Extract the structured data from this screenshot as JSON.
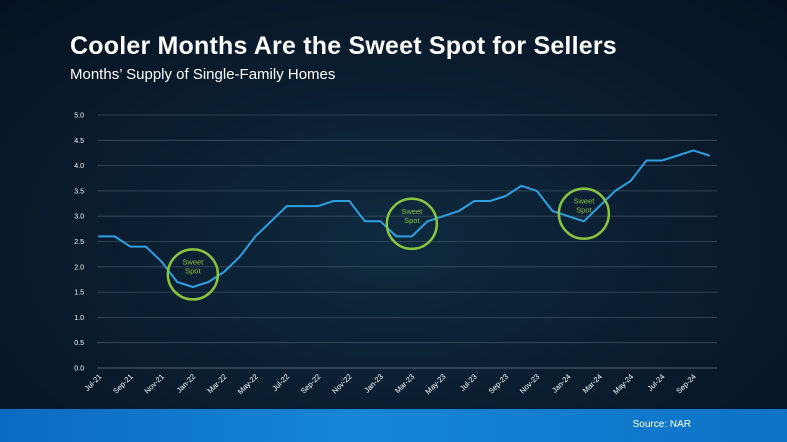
{
  "title": "Cooler Months Are the Sweet Spot for Sellers",
  "subtitle": "Months’ Supply of Single-Family Homes",
  "source": "Source: NAR",
  "colors": {
    "line": "#2e9fe0",
    "callout": "#8bc53f",
    "grid": "#3a4f60",
    "axis_text": "#ffffff"
  },
  "chart_data": {
    "type": "line",
    "title": "Cooler Months Are the Sweet Spot for Sellers",
    "subtitle": "Months’ Supply of Single-Family Homes",
    "xlabel": "",
    "ylabel": "",
    "ylim": [
      0,
      5
    ],
    "yticks": [
      "0.0",
      "0.5",
      "1.0",
      "1.5",
      "2.0",
      "2.5",
      "3.0",
      "3.5",
      "4.0",
      "4.5",
      "5.0"
    ],
    "grid": true,
    "x": [
      "Jul-21",
      "Aug-21",
      "Sep-21",
      "Oct-21",
      "Nov-21",
      "Dec-21",
      "Jan-22",
      "Feb-22",
      "Mar-22",
      "Apr-22",
      "May-22",
      "Jun-22",
      "Jul-22",
      "Aug-22",
      "Sep-22",
      "Oct-22",
      "Nov-22",
      "Dec-22",
      "Jan-23",
      "Feb-23",
      "Mar-23",
      "Apr-23",
      "May-23",
      "Jun-23",
      "Jul-23",
      "Aug-23",
      "Sep-23",
      "Oct-23",
      "Nov-23",
      "Dec-23",
      "Jan-24",
      "Feb-24",
      "Mar-24",
      "Apr-24",
      "May-24",
      "Jun-24",
      "Jul-24",
      "Aug-24",
      "Sep-24",
      "Oct-24"
    ],
    "xtick_labels": [
      "Jul-21",
      "Sep-21",
      "Nov-21",
      "Jan-22",
      "Mar-22",
      "May-22",
      "Jul-22",
      "Sep-22",
      "Nov-22",
      "Jan-23",
      "Mar-23",
      "May-23",
      "Jul-23",
      "Sep-23",
      "Nov-23",
      "Jan-24",
      "Mar-24",
      "May-24",
      "Jul-24",
      "Sep-24"
    ],
    "values": [
      2.6,
      2.6,
      2.4,
      2.4,
      2.1,
      1.7,
      1.6,
      1.7,
      1.9,
      2.2,
      2.6,
      2.9,
      3.2,
      3.2,
      3.2,
      3.3,
      3.3,
      2.9,
      2.9,
      2.6,
      2.6,
      2.9,
      3.0,
      3.1,
      3.3,
      3.3,
      3.4,
      3.6,
      3.5,
      3.1,
      3.0,
      2.9,
      3.2,
      3.5,
      3.7,
      4.1,
      4.1,
      4.2,
      4.3,
      4.2
    ],
    "annotations": [
      {
        "text": [
          "Sweet",
          "Spot"
        ],
        "x": "Jan-22",
        "y": 1.85
      },
      {
        "text": [
          "Sweet",
          "Spot"
        ],
        "x": "Mar-23",
        "y": 2.85
      },
      {
        "text": [
          "Sweet",
          "Spot"
        ],
        "x": "Feb-24",
        "y": 3.05
      }
    ]
  }
}
